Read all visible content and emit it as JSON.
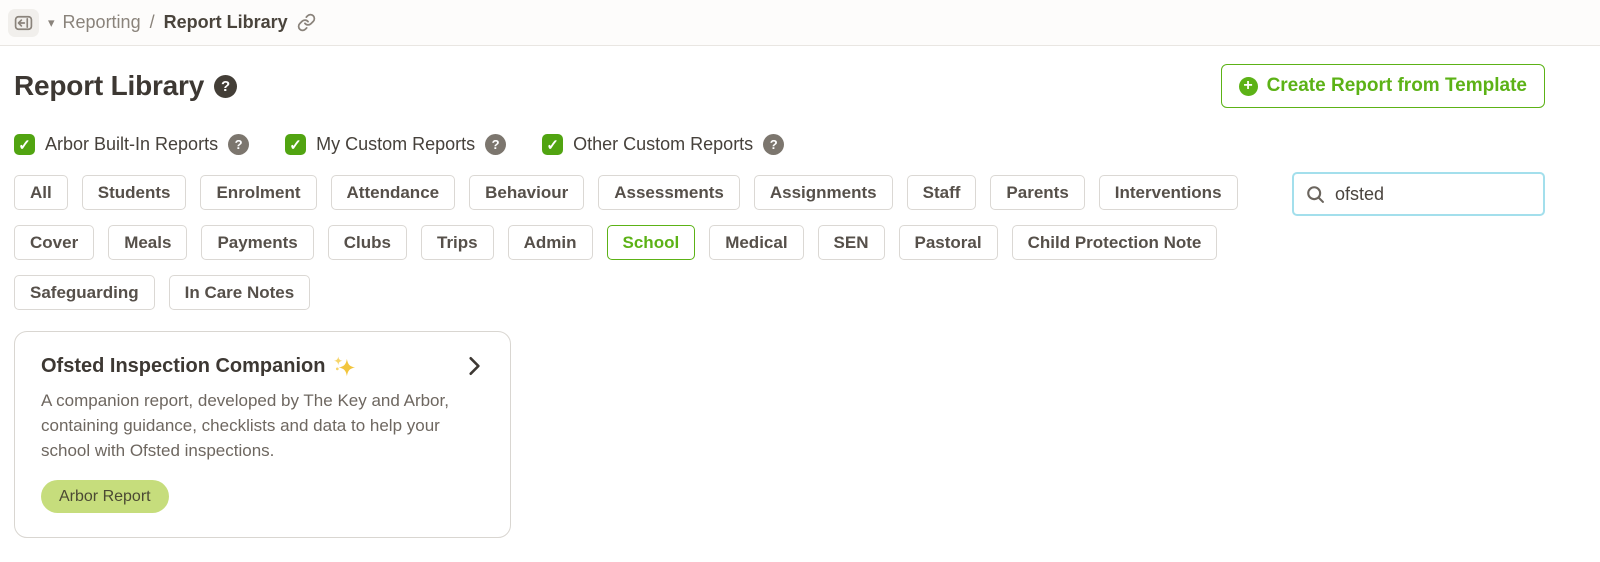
{
  "breadcrumb": {
    "section": "Reporting",
    "separator": "/",
    "page": "Report Library"
  },
  "header": {
    "title": "Report Library",
    "create_button_label": "Create Report from Template"
  },
  "filters": {
    "checkboxes": [
      {
        "label": "Arbor Built-In Reports",
        "checked": true
      },
      {
        "label": "My Custom Reports",
        "checked": true
      },
      {
        "label": "Other Custom Reports",
        "checked": true
      }
    ],
    "categories_row1": [
      "All",
      "Students",
      "Enrolment",
      "Attendance",
      "Behaviour",
      "Assessments",
      "Assignments",
      "Staff",
      "Parents",
      "Interventions"
    ],
    "categories_row2": [
      "Cover",
      "Meals",
      "Payments",
      "Clubs",
      "Trips",
      "Admin",
      "School",
      "Medical",
      "SEN",
      "Pastoral",
      "Child Protection Note"
    ],
    "categories_row3": [
      "Safeguarding",
      "In Care Notes"
    ],
    "selected_category": "School"
  },
  "search": {
    "value": "ofsted",
    "placeholder": ""
  },
  "results": [
    {
      "title": "Ofsted Inspection Companion",
      "description": "A companion report, developed by The Key and Arbor, containing guidance, checklists and data to help your school with Ofsted inspections.",
      "badge": "Arbor Report"
    }
  ],
  "icons": {
    "sidebar_toggle": "panel-collapse-left",
    "dropdown_caret": "▾",
    "breadcrumb_link": "chain-link",
    "help": "?",
    "check": "✓",
    "plus": "+",
    "search": "magnifying-glass",
    "sparkles": "four-point-stars",
    "chevron_right": "chevron-right"
  },
  "colors": {
    "accent_green": "#5cb216",
    "checkbox_green": "#51a411",
    "badge_background": "#c6dd7c",
    "search_focus_border": "#a3dfec",
    "text_dark": "#3d3833",
    "text_muted": "#8a837b"
  }
}
